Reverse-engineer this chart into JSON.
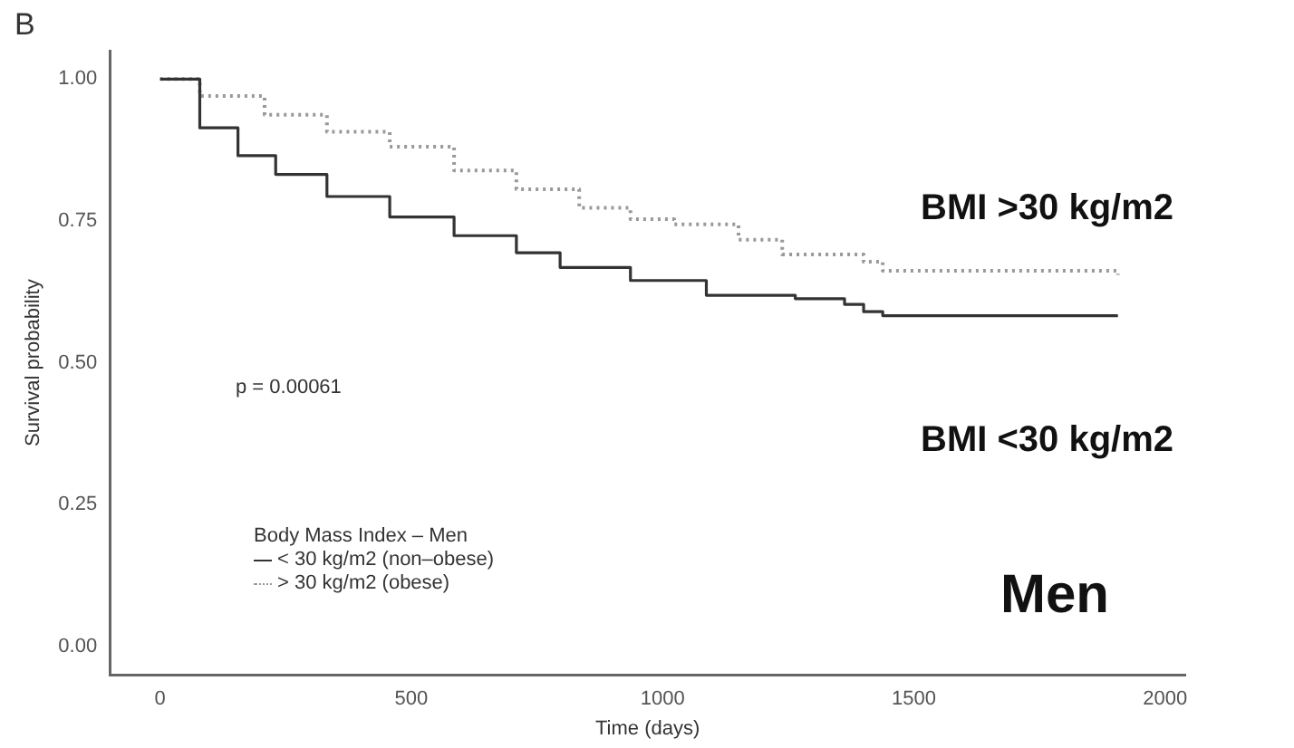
{
  "chart_data": {
    "type": "step",
    "xlabel": "Time (days)",
    "ylabel": "Survival probability",
    "legend_title": "Body Mass Index – Men",
    "legend": "bottom left",
    "marker": "none",
    "grid": false,
    "xlim": [
      -100,
      2040
    ],
    "xticks": [
      0,
      500,
      1000,
      1500,
      2000
    ],
    "ylim": [
      -0.05,
      1.05
    ],
    "yticks": [
      {
        "value": 0,
        "label": "0.00"
      },
      {
        "value": 0.25,
        "label": "0.25"
      },
      {
        "value": 0.5,
        "label": "0.50"
      },
      {
        "value": 0.75,
        "label": "0.75"
      },
      {
        "value": 1,
        "label": "1.00"
      }
    ],
    "series": [
      {
        "name": "< 30 kg/m2 (non–obese)",
        "color": "#333333",
        "line_style": "solid",
        "x": [
          0,
          79,
          155,
          230,
          332,
          457,
          585,
          709,
          796,
          936,
          1087,
          1264,
          1362,
          1400,
          1438,
          1906
        ],
        "values": [
          1,
          0.914,
          0.865,
          0.832,
          0.793,
          0.757,
          0.724,
          0.694,
          0.668,
          0.645,
          0.619,
          0.613,
          0.603,
          0.59,
          0.583,
          0.583
        ]
      },
      {
        "name": "> 30 kg/m2 (obese)",
        "color": "#999999",
        "line_style": "dotted",
        "x": [
          0,
          79,
          208,
          332,
          457,
          585,
          709,
          834,
          936,
          1023,
          1151,
          1238,
          1400,
          1438,
          1906
        ],
        "values": [
          1,
          0.97,
          0.937,
          0.907,
          0.881,
          0.839,
          0.806,
          0.773,
          0.753,
          0.744,
          0.717,
          0.691,
          0.678,
          0.662,
          0.655
        ]
      }
    ],
    "annotations": [
      "B",
      "p = 0.00061",
      "BMI >30 kg/m2",
      "BMI <30 kg/m2",
      "Men"
    ]
  }
}
